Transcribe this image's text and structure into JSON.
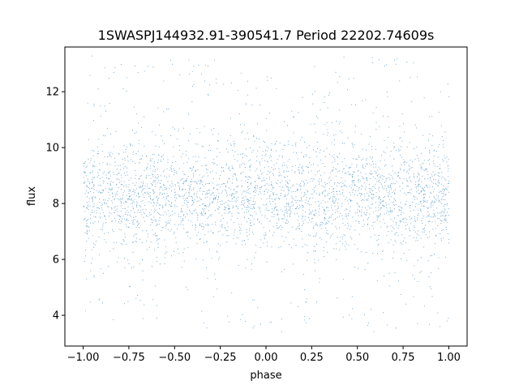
{
  "chart_data": {
    "type": "scatter",
    "title": "1SWASPJ144932.91-390541.7 Period 22202.74609s",
    "xlabel": "phase",
    "ylabel": "flux",
    "xlim": [
      -1.1,
      1.1
    ],
    "ylim": [
      2.9,
      13.6
    ],
    "xticks": [
      -1.0,
      -0.75,
      -0.5,
      -0.25,
      0.0,
      0.25,
      0.5,
      0.75,
      1.0
    ],
    "xtick_labels": [
      "−1.00",
      "−0.75",
      "−0.50",
      "−0.25",
      "0.00",
      "0.25",
      "0.50",
      "0.75",
      "1.00"
    ],
    "yticks": [
      4,
      6,
      8,
      10,
      12
    ],
    "ytick_labels": [
      "4",
      "6",
      "8",
      "10",
      "12"
    ],
    "grid": false,
    "marker_color": "#1f77b4",
    "series": [
      {
        "x_range": [
          -1.0,
          1.0
        ],
        "y_center": 8.3,
        "y_core_range": [
          6.2,
          10.2
        ],
        "y_full_range": [
          3.4,
          13.3
        ]
      }
    ]
  }
}
